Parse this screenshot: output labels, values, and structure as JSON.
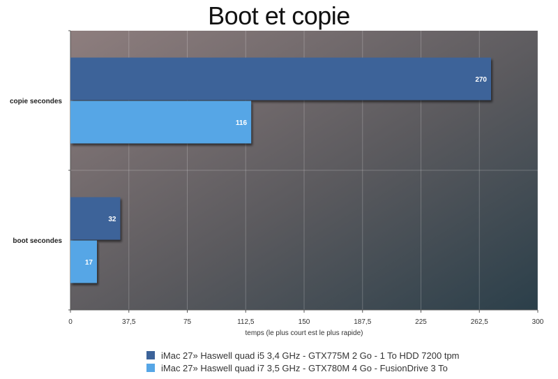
{
  "chart_data": {
    "type": "bar",
    "orientation": "horizontal",
    "title": "Boot et copie",
    "xlabel": "temps (le plus court est le plus rapide)",
    "ylabel": "",
    "xlim": [
      0,
      300
    ],
    "x_ticks": [
      "0",
      "37,5",
      "75",
      "112,5",
      "150",
      "187,5",
      "225",
      "262,5",
      "300"
    ],
    "categories": [
      "copie secondes",
      "boot secondes"
    ],
    "series": [
      {
        "name": "iMac 27» Haswell quad i5 3,4 GHz - GTX775M 2 Go - 1 To HDD 7200 tpm",
        "color": "#3c6399",
        "values": [
          270,
          32
        ]
      },
      {
        "name": "iMac 27» Haswell quad i7 3,5 GHz - GTX780M 4 Go - FusionDrive 3 To",
        "color": "#56a6e6",
        "values": [
          116,
          17
        ]
      }
    ],
    "grid": true,
    "legend_position": "bottom",
    "background": "gradient"
  }
}
